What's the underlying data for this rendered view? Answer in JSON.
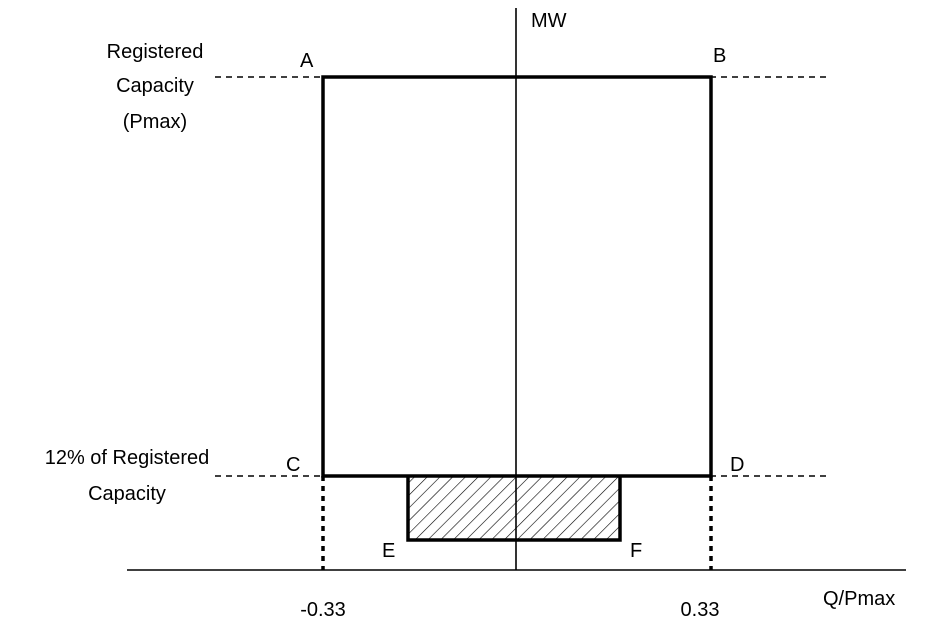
{
  "diagram": {
    "axis_y_label": "MW",
    "axis_x_label": "Q/Pmax",
    "registered_capacity_label": [
      "Registered",
      "Capacity",
      "(Pmax)"
    ],
    "twelve_percent_label": [
      "12% of Registered",
      "Capacity"
    ],
    "tick_left": "-0.33",
    "tick_right": "0.33",
    "points": {
      "a": "A",
      "b": "B",
      "c": "C",
      "d": "D",
      "e": "E",
      "f": "F"
    }
  }
}
